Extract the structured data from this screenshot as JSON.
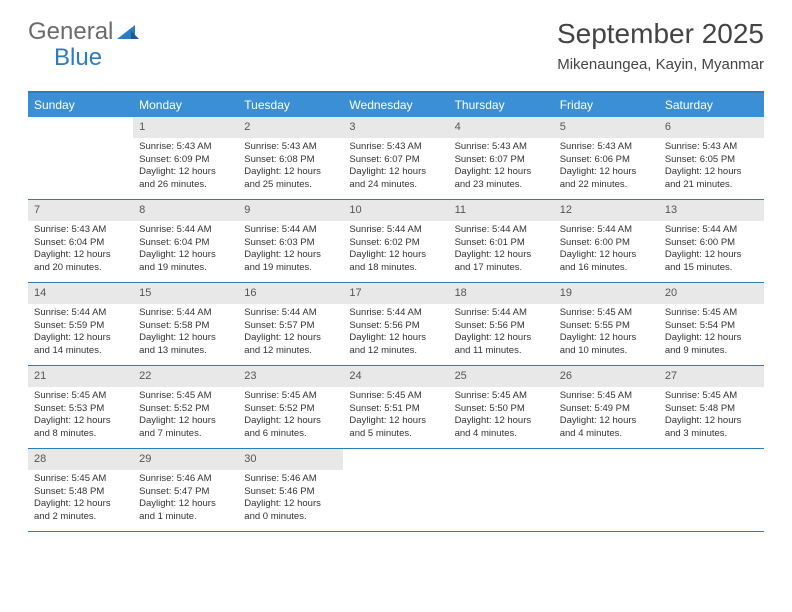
{
  "logo": {
    "text_general": "General",
    "text_blue": "Blue"
  },
  "title": "September 2025",
  "location": "Mikenaungea, Kayin, Myanmar",
  "colors": {
    "header_bg": "#3b8fd4",
    "border": "#2d7bc0",
    "daynum_bg": "#e8e8e8",
    "text": "#333333",
    "logo_gray": "#6b6b6b",
    "logo_blue": "#2d7bc0"
  },
  "day_headers": [
    "Sunday",
    "Monday",
    "Tuesday",
    "Wednesday",
    "Thursday",
    "Friday",
    "Saturday"
  ],
  "weeks": [
    [
      null,
      {
        "n": "1",
        "sr": "Sunrise: 5:43 AM",
        "ss": "Sunset: 6:09 PM",
        "dl1": "Daylight: 12 hours",
        "dl2": "and 26 minutes."
      },
      {
        "n": "2",
        "sr": "Sunrise: 5:43 AM",
        "ss": "Sunset: 6:08 PM",
        "dl1": "Daylight: 12 hours",
        "dl2": "and 25 minutes."
      },
      {
        "n": "3",
        "sr": "Sunrise: 5:43 AM",
        "ss": "Sunset: 6:07 PM",
        "dl1": "Daylight: 12 hours",
        "dl2": "and 24 minutes."
      },
      {
        "n": "4",
        "sr": "Sunrise: 5:43 AM",
        "ss": "Sunset: 6:07 PM",
        "dl1": "Daylight: 12 hours",
        "dl2": "and 23 minutes."
      },
      {
        "n": "5",
        "sr": "Sunrise: 5:43 AM",
        "ss": "Sunset: 6:06 PM",
        "dl1": "Daylight: 12 hours",
        "dl2": "and 22 minutes."
      },
      {
        "n": "6",
        "sr": "Sunrise: 5:43 AM",
        "ss": "Sunset: 6:05 PM",
        "dl1": "Daylight: 12 hours",
        "dl2": "and 21 minutes."
      }
    ],
    [
      {
        "n": "7",
        "sr": "Sunrise: 5:43 AM",
        "ss": "Sunset: 6:04 PM",
        "dl1": "Daylight: 12 hours",
        "dl2": "and 20 minutes."
      },
      {
        "n": "8",
        "sr": "Sunrise: 5:44 AM",
        "ss": "Sunset: 6:04 PM",
        "dl1": "Daylight: 12 hours",
        "dl2": "and 19 minutes."
      },
      {
        "n": "9",
        "sr": "Sunrise: 5:44 AM",
        "ss": "Sunset: 6:03 PM",
        "dl1": "Daylight: 12 hours",
        "dl2": "and 19 minutes."
      },
      {
        "n": "10",
        "sr": "Sunrise: 5:44 AM",
        "ss": "Sunset: 6:02 PM",
        "dl1": "Daylight: 12 hours",
        "dl2": "and 18 minutes."
      },
      {
        "n": "11",
        "sr": "Sunrise: 5:44 AM",
        "ss": "Sunset: 6:01 PM",
        "dl1": "Daylight: 12 hours",
        "dl2": "and 17 minutes."
      },
      {
        "n": "12",
        "sr": "Sunrise: 5:44 AM",
        "ss": "Sunset: 6:00 PM",
        "dl1": "Daylight: 12 hours",
        "dl2": "and 16 minutes."
      },
      {
        "n": "13",
        "sr": "Sunrise: 5:44 AM",
        "ss": "Sunset: 6:00 PM",
        "dl1": "Daylight: 12 hours",
        "dl2": "and 15 minutes."
      }
    ],
    [
      {
        "n": "14",
        "sr": "Sunrise: 5:44 AM",
        "ss": "Sunset: 5:59 PM",
        "dl1": "Daylight: 12 hours",
        "dl2": "and 14 minutes."
      },
      {
        "n": "15",
        "sr": "Sunrise: 5:44 AM",
        "ss": "Sunset: 5:58 PM",
        "dl1": "Daylight: 12 hours",
        "dl2": "and 13 minutes."
      },
      {
        "n": "16",
        "sr": "Sunrise: 5:44 AM",
        "ss": "Sunset: 5:57 PM",
        "dl1": "Daylight: 12 hours",
        "dl2": "and 12 minutes."
      },
      {
        "n": "17",
        "sr": "Sunrise: 5:44 AM",
        "ss": "Sunset: 5:56 PM",
        "dl1": "Daylight: 12 hours",
        "dl2": "and 12 minutes."
      },
      {
        "n": "18",
        "sr": "Sunrise: 5:44 AM",
        "ss": "Sunset: 5:56 PM",
        "dl1": "Daylight: 12 hours",
        "dl2": "and 11 minutes."
      },
      {
        "n": "19",
        "sr": "Sunrise: 5:45 AM",
        "ss": "Sunset: 5:55 PM",
        "dl1": "Daylight: 12 hours",
        "dl2": "and 10 minutes."
      },
      {
        "n": "20",
        "sr": "Sunrise: 5:45 AM",
        "ss": "Sunset: 5:54 PM",
        "dl1": "Daylight: 12 hours",
        "dl2": "and 9 minutes."
      }
    ],
    [
      {
        "n": "21",
        "sr": "Sunrise: 5:45 AM",
        "ss": "Sunset: 5:53 PM",
        "dl1": "Daylight: 12 hours",
        "dl2": "and 8 minutes."
      },
      {
        "n": "22",
        "sr": "Sunrise: 5:45 AM",
        "ss": "Sunset: 5:52 PM",
        "dl1": "Daylight: 12 hours",
        "dl2": "and 7 minutes."
      },
      {
        "n": "23",
        "sr": "Sunrise: 5:45 AM",
        "ss": "Sunset: 5:52 PM",
        "dl1": "Daylight: 12 hours",
        "dl2": "and 6 minutes."
      },
      {
        "n": "24",
        "sr": "Sunrise: 5:45 AM",
        "ss": "Sunset: 5:51 PM",
        "dl1": "Daylight: 12 hours",
        "dl2": "and 5 minutes."
      },
      {
        "n": "25",
        "sr": "Sunrise: 5:45 AM",
        "ss": "Sunset: 5:50 PM",
        "dl1": "Daylight: 12 hours",
        "dl2": "and 4 minutes."
      },
      {
        "n": "26",
        "sr": "Sunrise: 5:45 AM",
        "ss": "Sunset: 5:49 PM",
        "dl1": "Daylight: 12 hours",
        "dl2": "and 4 minutes."
      },
      {
        "n": "27",
        "sr": "Sunrise: 5:45 AM",
        "ss": "Sunset: 5:48 PM",
        "dl1": "Daylight: 12 hours",
        "dl2": "and 3 minutes."
      }
    ],
    [
      {
        "n": "28",
        "sr": "Sunrise: 5:45 AM",
        "ss": "Sunset: 5:48 PM",
        "dl1": "Daylight: 12 hours",
        "dl2": "and 2 minutes."
      },
      {
        "n": "29",
        "sr": "Sunrise: 5:46 AM",
        "ss": "Sunset: 5:47 PM",
        "dl1": "Daylight: 12 hours",
        "dl2": "and 1 minute."
      },
      {
        "n": "30",
        "sr": "Sunrise: 5:46 AM",
        "ss": "Sunset: 5:46 PM",
        "dl1": "Daylight: 12 hours",
        "dl2": "and 0 minutes."
      },
      null,
      null,
      null,
      null
    ]
  ]
}
